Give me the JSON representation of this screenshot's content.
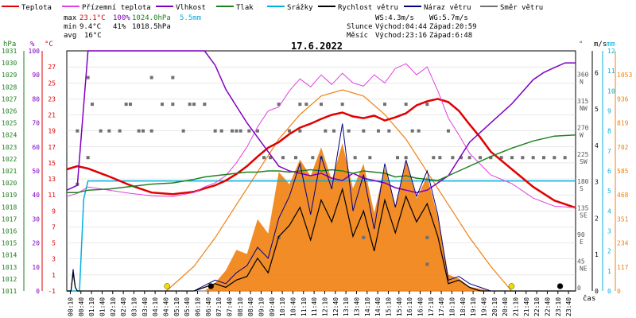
{
  "chart_data": {
    "type": "line",
    "title": "17.6.2022",
    "legend": [
      {
        "label": "Teplota",
        "color": "#e00000"
      },
      {
        "label": "Přízemní teplota",
        "color": "#e040e0"
      },
      {
        "label": "Vlhkost",
        "color": "#8000c0"
      },
      {
        "label": "Tlak",
        "color": "#208020"
      },
      {
        "label": "Srážky",
        "color": "#00b0e0"
      },
      {
        "label": "Rychlost větru",
        "color": "#000000"
      },
      {
        "label": "Náraz větru",
        "color": "#000080"
      },
      {
        "label": "Směr větru",
        "color": "#707070"
      }
    ],
    "stats": {
      "max": {
        "label": "max",
        "temp": "23.1°C",
        "hum": "100%",
        "press": "1024.0hPa",
        "rain": "5.5mm"
      },
      "min": {
        "label": "min",
        "temp": "9.4°C",
        "hum": "41%",
        "press": "1018.5hPa"
      },
      "avg": {
        "label": "avg",
        "temp": "16°C"
      }
    },
    "info": {
      "ws": "WS:4.3m/s",
      "wg": "WG:5.7m/s",
      "sun_label": "Slunce",
      "sunrise": "Východ:04:44",
      "sunset": "Západ:20:59",
      "moon_label": "Měsíc",
      "moonrise": "Východ:23:16",
      "moonset": "Západ:6:48"
    },
    "axes": {
      "pressure": {
        "unit": "hPa",
        "ticks": [
          1011,
          1012,
          1013,
          1014,
          1015,
          1016,
          1017,
          1018,
          1019,
          1020,
          1021,
          1022,
          1023,
          1024,
          1025,
          1026,
          1027,
          1028,
          1029,
          1030,
          1031
        ]
      },
      "humidity": {
        "unit": "%",
        "ticks": [
          0,
          10,
          20,
          30,
          40,
          50,
          60,
          70,
          80,
          90,
          100
        ]
      },
      "temperature": {
        "unit": "°C",
        "ticks": [
          -1,
          1,
          3,
          5,
          7,
          9,
          11,
          13,
          15,
          17,
          19,
          21,
          23,
          25,
          27
        ]
      },
      "direction": {
        "unit": "°",
        "ticks": [
          {
            "deg": "360",
            "dir": "N"
          },
          {
            "deg": "315",
            "dir": "NW"
          },
          {
            "deg": "270",
            "dir": "W"
          },
          {
            "deg": "225",
            "dir": "SW"
          },
          {
            "deg": "180",
            "dir": "S"
          },
          {
            "deg": "135",
            "dir": "SE"
          },
          {
            "deg": "90",
            "dir": "E"
          },
          {
            "deg": "45",
            "dir": "NE"
          },
          {
            "deg": "0",
            "dir": ""
          }
        ]
      },
      "wind": {
        "unit": "m/s",
        "ticks": [
          0,
          1,
          2,
          3,
          4,
          5,
          6
        ]
      },
      "rain": {
        "unit": "mm",
        "ticks": [
          0,
          1,
          2,
          3,
          4,
          5,
          6,
          7,
          8,
          9,
          10,
          11,
          12
        ]
      },
      "solar": {
        "ticks": [
          0,
          117,
          234,
          351,
          468,
          585,
          702,
          819,
          936,
          1053
        ]
      },
      "time": {
        "label": "čas",
        "ticks": [
          "00:10",
          "00:40",
          "01:10",
          "01:40",
          "02:10",
          "02:40",
          "03:10",
          "03:40",
          "04:10",
          "04:40",
          "05:10",
          "05:40",
          "06:10",
          "06:40",
          "07:10",
          "07:40",
          "08:10",
          "08:40",
          "09:10",
          "09:40",
          "10:10",
          "10:40",
          "11:10",
          "11:40",
          "12:10",
          "12:40",
          "13:10",
          "13:40",
          "14:10",
          "14:40",
          "15:10",
          "15:40",
          "16:10",
          "16:40",
          "17:10",
          "17:40",
          "18:10",
          "18:40",
          "19:10",
          "19:40",
          "20:10",
          "20:40",
          "21:10",
          "21:40",
          "22:10",
          "22:40",
          "23:10",
          "23:40"
        ]
      }
    },
    "x_hours": [
      0,
      1,
      2,
      3,
      4,
      5,
      6,
      7,
      8,
      9,
      10,
      11,
      12,
      13,
      14,
      15,
      16,
      17,
      18,
      19,
      20,
      21,
      22,
      23,
      24
    ],
    "series": [
      {
        "name": "Teplota",
        "axis": "temperature",
        "color": "#e00000",
        "width": 2.5,
        "hours": [
          0,
          0.5,
          1,
          2,
          3,
          4,
          5,
          6,
          6.5,
          7,
          7.5,
          8,
          8.5,
          9,
          9.5,
          10,
          10.5,
          11,
          11.5,
          12,
          12.5,
          13,
          13.5,
          14,
          14.5,
          15,
          15.5,
          16,
          16.5,
          17,
          17.5,
          18,
          18.5,
          19,
          19.5,
          20,
          21,
          22,
          23,
          24
        ],
        "values": [
          14.2,
          14.6,
          14.3,
          13.3,
          12.2,
          11.3,
          11.1,
          11.4,
          11.8,
          12.2,
          12.8,
          13.6,
          14.6,
          15.8,
          16.9,
          17.6,
          18.6,
          19.4,
          19.9,
          20.5,
          21.0,
          21.3,
          20.8,
          20.6,
          20.9,
          20.3,
          20.7,
          21.2,
          22.2,
          22.7,
          23.0,
          22.6,
          21.5,
          19.8,
          18.2,
          16.4,
          14.2,
          12.0,
          10.3,
          9.4
        ]
      },
      {
        "name": "Přízemní teplota",
        "axis": "temperature",
        "color": "#e040e0",
        "width": 1,
        "hours": [
          0,
          0.5,
          1,
          2,
          3,
          4,
          5,
          6,
          6.5,
          7,
          7.5,
          8,
          8.5,
          9,
          9.5,
          10,
          10.5,
          11,
          11.5,
          12,
          12.5,
          13,
          13.5,
          14,
          14.5,
          15,
          15.5,
          16,
          16.5,
          17,
          17.5,
          18,
          18.5,
          19,
          20,
          21,
          22,
          23,
          24
        ],
        "values": [
          10.8,
          11.2,
          12.0,
          11.6,
          11.2,
          10.9,
          10.8,
          11.3,
          12.0,
          12.5,
          13.4,
          15.0,
          17.0,
          19.5,
          21.5,
          22.0,
          24.0,
          25.5,
          24.5,
          26.0,
          24.8,
          26.2,
          25.0,
          24.6,
          26.0,
          25.0,
          26.8,
          27.4,
          26.0,
          27.0,
          24.0,
          20.6,
          18.5,
          16.2,
          13.5,
          12.4,
          10.6,
          9.6,
          9.4
        ]
      },
      {
        "name": "Vlhkost",
        "axis": "humidity",
        "color": "#8000c0",
        "width": 1.5,
        "hours": [
          0,
          0.5,
          1,
          2,
          3,
          4,
          5,
          6,
          6.5,
          7,
          7.5,
          8,
          8.5,
          9,
          9.5,
          10,
          10.5,
          11,
          11.5,
          12,
          12.5,
          13,
          13.5,
          14,
          14.5,
          15,
          15.5,
          16,
          16.5,
          17,
          17.5,
          18,
          18.5,
          19,
          20,
          21,
          22,
          22.5,
          23,
          23.5,
          24
        ],
        "values": [
          42,
          44,
          100,
          100,
          100,
          100,
          100,
          100,
          100,
          94,
          84,
          77,
          70,
          64,
          58,
          52,
          50,
          49,
          48,
          49,
          47,
          46,
          49,
          47,
          46,
          45,
          43,
          42,
          41,
          42,
          45,
          48,
          55,
          62,
          70,
          78,
          88,
          91,
          93,
          95,
          95
        ]
      },
      {
        "name": "Tlak",
        "axis": "pressure",
        "color": "#208020",
        "width": 1.5,
        "hours": [
          0,
          0.5,
          1,
          2,
          3,
          4,
          5,
          6,
          6.5,
          7,
          7.5,
          8,
          8.5,
          9,
          9.5,
          10,
          10.5,
          11,
          11.5,
          12,
          12.5,
          13,
          13.5,
          14,
          14.5,
          15,
          15.5,
          16,
          16.5,
          17,
          17.5,
          18,
          18.5,
          19,
          20,
          21,
          22,
          23,
          24
        ],
        "values": [
          1019.2,
          1019.2,
          1019.4,
          1019.5,
          1019.7,
          1019.9,
          1020.0,
          1020.3,
          1020.5,
          1020.6,
          1020.7,
          1020.8,
          1020.9,
          1020.9,
          1021.0,
          1021.0,
          1020.9,
          1021.0,
          1021.1,
          1021.0,
          1021.1,
          1021.0,
          1020.8,
          1021.0,
          1020.9,
          1020.8,
          1020.5,
          1020.6,
          1020.4,
          1020.3,
          1020.2,
          1020.6,
          1021.0,
          1021.4,
          1022.2,
          1022.9,
          1023.5,
          1023.9,
          1024.0
        ]
      }
    ],
    "rain": {
      "hours": [
        0,
        0.6,
        0.8,
        1,
        24
      ],
      "values": [
        0,
        0,
        4.6,
        5.5,
        5.5
      ]
    },
    "wind_speed": {
      "hours": [
        0,
        0.2,
        0.3,
        0.4,
        0.5,
        1,
        3,
        6,
        7,
        7.5,
        8,
        8.5,
        9,
        9.5,
        10,
        10.5,
        11,
        11.5,
        12,
        12.5,
        13,
        13.5,
        14,
        14.5,
        15,
        15.5,
        16,
        16.5,
        17,
        17.5,
        18,
        18.5,
        19,
        19.5,
        20,
        24
      ],
      "values": [
        0,
        0,
        0.5,
        0.1,
        0,
        0,
        0,
        0,
        0.2,
        0.1,
        0.3,
        0.4,
        0.9,
        0.5,
        1.5,
        1.8,
        2.3,
        1.4,
        2.5,
        1.9,
        2.8,
        1.5,
        2.2,
        1.1,
        2.5,
        1.6,
        2.6,
        1.9,
        2.4,
        1.5,
        0.2,
        0.3,
        0.1,
        0.0,
        0,
        0
      ]
    },
    "wind_gust": {
      "hours": [
        0,
        0.2,
        0.3,
        0.4,
        0.5,
        1,
        3,
        6,
        7,
        7.5,
        8,
        8.5,
        9,
        9.5,
        10,
        10.5,
        11,
        11.5,
        12,
        12.5,
        13,
        13.5,
        14,
        14.5,
        15,
        15.5,
        16,
        16.5,
        17,
        17.5,
        18,
        18.5,
        19,
        19.5,
        20,
        24
      ],
      "values": [
        0,
        0,
        0.6,
        0.1,
        0,
        0,
        0,
        0,
        0.3,
        0.2,
        0.5,
        0.7,
        1.2,
        0.9,
        2.0,
        2.6,
        3.5,
        2.1,
        3.7,
        2.8,
        4.6,
        2.2,
        3.2,
        1.7,
        3.5,
        2.3,
        3.6,
        2.6,
        3.3,
        2.1,
        0.3,
        0.4,
        0.2,
        0.1,
        0,
        0
      ]
    },
    "solar": {
      "hours": [
        0,
        4.7,
        5.5,
        6.5,
        7,
        7.5,
        8,
        8.5,
        9,
        9.5,
        10,
        10.5,
        11,
        11.5,
        12,
        12.5,
        13,
        13.5,
        14,
        14.5,
        15,
        15.5,
        16,
        16.5,
        17,
        17.5,
        18,
        18.5,
        19,
        20,
        21,
        24
      ],
      "values": [
        0,
        0,
        0,
        0,
        40,
        100,
        200,
        180,
        350,
        280,
        580,
        520,
        640,
        560,
        700,
        540,
        720,
        500,
        620,
        380,
        600,
        420,
        630,
        450,
        560,
        360,
        80,
        60,
        20,
        0,
        0,
        0
      ]
    },
    "theoretical_solar": {
      "hours": [
        4.7,
        6,
        7,
        8,
        9,
        10,
        11,
        12,
        13,
        14,
        15,
        16,
        17,
        18,
        19,
        20,
        20.98
      ],
      "values": [
        0,
        120,
        260,
        420,
        580,
        740,
        860,
        950,
        980,
        950,
        860,
        740,
        580,
        420,
        260,
        120,
        0
      ]
    },
    "wind_dir_points": [
      [
        1,
        360
      ],
      [
        4,
        360
      ],
      [
        5,
        360
      ],
      [
        0.5,
        270
      ],
      [
        1,
        225
      ],
      [
        0.5,
        180
      ],
      [
        1.2,
        315
      ],
      [
        1.6,
        270
      ],
      [
        2,
        270
      ],
      [
        2.5,
        270
      ],
      [
        2.8,
        315
      ],
      [
        3,
        315
      ],
      [
        3.4,
        270
      ],
      [
        3.6,
        270
      ],
      [
        4,
        270
      ],
      [
        4.5,
        315
      ],
      [
        5,
        315
      ],
      [
        5.5,
        270
      ],
      [
        5.8,
        315
      ],
      [
        6,
        315
      ],
      [
        6.5,
        315
      ],
      [
        7,
        270
      ],
      [
        7.3,
        270
      ],
      [
        7.8,
        270
      ],
      [
        8,
        270
      ],
      [
        8.2,
        270
      ],
      [
        8.6,
        270
      ],
      [
        9,
        270
      ],
      [
        9.3,
        225
      ],
      [
        9.6,
        225
      ],
      [
        10,
        315
      ],
      [
        10.2,
        225
      ],
      [
        10.5,
        270
      ],
      [
        10.8,
        225
      ],
      [
        11,
        270
      ],
      [
        11.3,
        315
      ],
      [
        11.6,
        225
      ],
      [
        12,
        225
      ],
      [
        12.2,
        270
      ],
      [
        12.6,
        270
      ],
      [
        13,
        315
      ],
      [
        13.3,
        270
      ],
      [
        13.6,
        225
      ],
      [
        14,
        270
      ],
      [
        14.3,
        225
      ],
      [
        14.7,
        270
      ],
      [
        15,
        315
      ],
      [
        15.2,
        270
      ],
      [
        15.6,
        225
      ],
      [
        16,
        225
      ],
      [
        16.3,
        270
      ],
      [
        16.6,
        270
      ],
      [
        17,
        315
      ],
      [
        17.3,
        225
      ],
      [
        17.6,
        225
      ],
      [
        18,
        270
      ],
      [
        18.2,
        225
      ],
      [
        18.6,
        225
      ],
      [
        19,
        225
      ],
      [
        19.5,
        225
      ],
      [
        20,
        225
      ],
      [
        20.5,
        225
      ],
      [
        21,
        225
      ],
      [
        21.5,
        225
      ],
      [
        22,
        225
      ],
      [
        22.5,
        225
      ],
      [
        23,
        225
      ],
      [
        23.5,
        225
      ],
      [
        12,
        315
      ],
      [
        11,
        315
      ],
      [
        16,
        315
      ],
      [
        10,
        90
      ],
      [
        14,
        90
      ],
      [
        17,
        90
      ],
      [
        17,
        45
      ]
    ],
    "markers": [
      {
        "kind": "sunrise",
        "hour": 4.73,
        "color": "#f0e000"
      },
      {
        "kind": "sunset",
        "hour": 20.98,
        "color": "#f0e000"
      },
      {
        "kind": "moonset",
        "hour": 6.8,
        "color": "#000000"
      },
      {
        "kind": "moonrise",
        "hour": 23.27,
        "color": "#000000"
      }
    ]
  }
}
